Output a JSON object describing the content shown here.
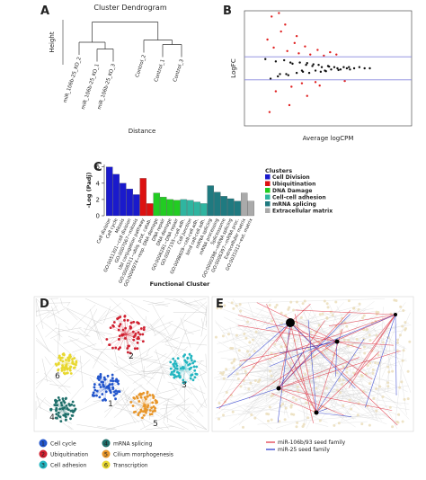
{
  "panel_labels": [
    "A",
    "B",
    "C",
    "D",
    "E"
  ],
  "chart_data": [
    {
      "type": "dendrogram",
      "title": "Cluster Dendrogram",
      "ylabel": "Height",
      "xlabel": "Distance",
      "leaves": [
        "miR_106b-25_KO_2",
        "miR_106b-25_KO_1",
        "miR_106b-25_KO_3",
        "Control_2",
        "Control_1",
        "Control_3"
      ],
      "merge_heights": [
        0.35,
        0.5,
        0.45,
        0.55,
        0.95
      ],
      "ylim": [
        0,
        1
      ]
    },
    {
      "type": "scatter",
      "xlabel": "Average logCPM",
      "ylabel": "LogFC",
      "xlim": [
        0,
        16
      ],
      "ylim": [
        -5,
        5
      ],
      "hlines": [
        1,
        -1
      ],
      "hline_color": "#8888dd",
      "series": [
        {
          "color": "#111111",
          "x": [
            2.0,
            2.5,
            3,
            3.4,
            3.8,
            4.2,
            4.6,
            5,
            5.3,
            5.6,
            5.9,
            6.2,
            6.5,
            6.8,
            7.1,
            7.4,
            7.7,
            8,
            8.3,
            8.6,
            8.9,
            9.2,
            9.5,
            9.8,
            10.1,
            10.5,
            11,
            11.5,
            12,
            3.2,
            4.4,
            5.5,
            6.6,
            7.3,
            8.1,
            9,
            10,
            4,
            6,
            7.8
          ],
          "values": [
            0.8,
            -0.9,
            0.6,
            -0.5,
            0.7,
            -0.6,
            0.4,
            -0.4,
            0.5,
            -0.3,
            0.3,
            -0.4,
            0.2,
            -0.2,
            0.3,
            0.1,
            -0.2,
            0.2,
            -0.1,
            0.1,
            0,
            -0.1,
            0.1,
            0,
            -0.1,
            0,
            0.1,
            0,
            0,
            -0.7,
            0.5,
            -0.2,
            0.35,
            -0.3,
            0.15,
            -0.15,
            0.1,
            -0.5,
            0.45,
            -0.25
          ]
        },
        {
          "color": "#e02020",
          "x": [
            2.2,
            2.8,
            3.5,
            4.1,
            4.8,
            5.2,
            5.8,
            6.3,
            7,
            7.6,
            8.2,
            3,
            4.5,
            5.5,
            6.8,
            2.6,
            3.9,
            5,
            6,
            7.2,
            8.8,
            9.6,
            4.3,
            3.3,
            2.4
          ],
          "values": [
            2.5,
            1.8,
            3.2,
            1.5,
            2.2,
            1.3,
            1.9,
            1.2,
            1.6,
            1.1,
            1.4,
            -2,
            -1.6,
            -1.3,
            -1.2,
            4.5,
            3.8,
            2.8,
            -2.4,
            -1.5,
            1.2,
            -1.1,
            -3.2,
            4.8,
            -3.8
          ]
        }
      ]
    },
    {
      "type": "bar",
      "ylabel": "-Log (Padj)",
      "xlabel": "Functional Cluster",
      "ylim": [
        0,
        6.3
      ],
      "yticks": [
        0,
        2,
        4,
        6
      ],
      "categories": [
        "Cell division",
        "Cell cycle",
        "Mitosis",
        "GO:0051301~cell division",
        "GO:0007067~mitosis",
        "Ubl conjugation pathway",
        "GO:0006511~ubiq. prot. catab.",
        "GO:0006974~resp. DNA damage",
        "DNA repair",
        "DNA damage",
        "GO:0006281~DNA repair",
        "GO:0007155~cell adh.",
        "Cell junction",
        "GO:0098609~cell-cell adh.",
        "bind cell-cell adh.",
        "mRNA splicing",
        "mRNA processing",
        "Spliceosome",
        "GO:0000398~mRNA splicing",
        "GO:0006397~mRNA proc.",
        "Extracellular matrix",
        "GO:0031012~ext. matrix"
      ],
      "values": [
        6,
        5.1,
        4,
        3.3,
        2.6,
        4.6,
        1.5,
        2.8,
        2.3,
        2,
        1.9,
        2,
        1.9,
        1.7,
        1.5,
        3.7,
        2.9,
        2.4,
        2.1,
        1.8,
        2.8,
        1.8
      ],
      "colors": [
        "#1a1acc",
        "#1a1acc",
        "#1a1acc",
        "#1a1acc",
        "#1a1acc",
        "#dd1111",
        "#dd1111",
        "#22cc22",
        "#22cc22",
        "#22cc22",
        "#22cc22",
        "#2fb5a0",
        "#2fb5a0",
        "#2fb5a0",
        "#2fb5a0",
        "#1f7a80",
        "#1f7a80",
        "#1f7a80",
        "#1f7a80",
        "#1f7a80",
        "#aaaaaa",
        "#aaaaaa"
      ],
      "legend": {
        "title": "Clusters",
        "items": [
          {
            "name": "Cell Division",
            "color": "#1a1acc"
          },
          {
            "name": "Ubiquitination",
            "color": "#dd1111"
          },
          {
            "name": "DNA Damage",
            "color": "#22cc22"
          },
          {
            "name": "Cell-cell adhesion",
            "color": "#2fb5a0"
          },
          {
            "name": "mRNA splicing",
            "color": "#1f7a80"
          },
          {
            "name": "Extracellular matrix",
            "color": "#aaaaaa"
          }
        ]
      }
    }
  ],
  "network_d": {
    "legend": [
      {
        "number": "1",
        "label": "Cell cycle",
        "color": "#2255cc"
      },
      {
        "number": "2",
        "label": "Ubiquitination",
        "color": "#d02030"
      },
      {
        "number": "3",
        "label": "Cell adhesion",
        "color": "#22b5c0"
      },
      {
        "number": "4",
        "label": "mRNA splicing",
        "color": "#1f6f6a"
      },
      {
        "number": "5",
        "label": "Cilium morphogenesis",
        "color": "#e8962a"
      },
      {
        "number": "6",
        "label": "Transcription",
        "color": "#e8d830"
      }
    ]
  },
  "network_e": {
    "legend": [
      {
        "label": "miR-106b/93 seed family",
        "color": "#e03040"
      },
      {
        "label": "miR-25 seed family",
        "color": "#2233cc"
      }
    ]
  }
}
